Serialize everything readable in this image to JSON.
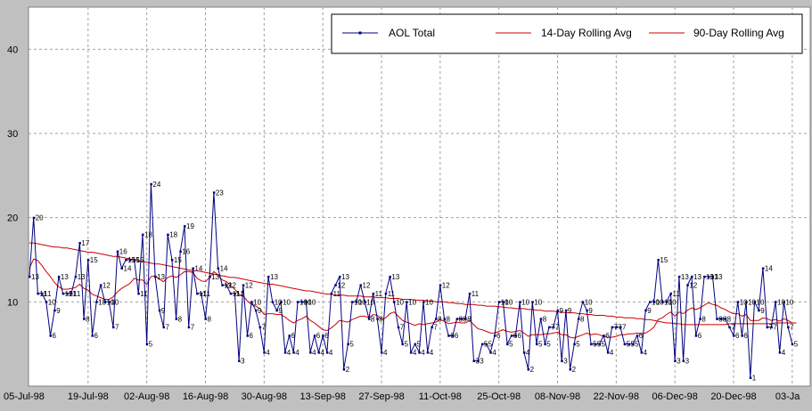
{
  "chart_data": {
    "type": "line",
    "x_ticks": [
      "05-Jul-98",
      "19-Jul-98",
      "02-Aug-98",
      "16-Aug-98",
      "30-Aug-98",
      "13-Sep-98",
      "27-Sep-98",
      "11-Oct-98",
      "25-Oct-98",
      "08-Nov-98",
      "22-Nov-98",
      "06-Dec-98",
      "20-Dec-98",
      "03-Ja"
    ],
    "y_ticks": [
      "10",
      "20",
      "30",
      "40"
    ],
    "ylim": [
      0,
      45
    ],
    "grid": true,
    "legend_position": "top-right",
    "series": [
      {
        "name": "AOL Total",
        "color": "#000080",
        "values": [
          13,
          20,
          11,
          11,
          10,
          6,
          9,
          13,
          11,
          11,
          11,
          13,
          17,
          8,
          15,
          6,
          10,
          12,
          10,
          10,
          7,
          16,
          14,
          15,
          15,
          15,
          11,
          18,
          5,
          24,
          13,
          9,
          7,
          18,
          15,
          8,
          16,
          19,
          7,
          14,
          11,
          11,
          8,
          13,
          23,
          14,
          12,
          12,
          11,
          11,
          3,
          12,
          6,
          10,
          9,
          7,
          4,
          13,
          10,
          9,
          10,
          4,
          6,
          4,
          10,
          10,
          10,
          4,
          6,
          4,
          6,
          4,
          11,
          12,
          13,
          2,
          5,
          10,
          10,
          12,
          10,
          8,
          11,
          8,
          4,
          11,
          13,
          10,
          7,
          5,
          10,
          4,
          5,
          4,
          10,
          4,
          7,
          8,
          12,
          8,
          6,
          6,
          8,
          8,
          8,
          11,
          3,
          3,
          5,
          5,
          4,
          6,
          10,
          10,
          5,
          6,
          6,
          10,
          4,
          2,
          10,
          5,
          8,
          5,
          7,
          7,
          9,
          3,
          9,
          2,
          5,
          8,
          10,
          9,
          5,
          5,
          5,
          6,
          4,
          7,
          7,
          7,
          5,
          5,
          5,
          6,
          4,
          9,
          10,
          10,
          15,
          10,
          10,
          11,
          3,
          13,
          3,
          12,
          13,
          6,
          8,
          13,
          13,
          13,
          8,
          8,
          8,
          7,
          6,
          10,
          6,
          10,
          1,
          10,
          9,
          14,
          7,
          7,
          10,
          4,
          10,
          7,
          5
        ],
        "labels_shown": true
      },
      {
        "name": "14-Day Rolling Avg",
        "color": "#cc0000",
        "values": [
          14,
          15.1,
          14.9,
          14.3,
          13.6,
          13,
          12.3,
          11.8,
          11.5,
          11.5,
          11.6,
          11.7,
          12.1,
          11.6,
          11.4,
          10.9,
          10.7,
          10.5,
          10.3,
          10.3,
          10.6,
          11.2,
          11.6,
          11.9,
          12.2,
          12.8,
          12.6,
          12.6,
          12.1,
          13,
          13.1,
          12.7,
          12.4,
          12.9,
          13.1,
          12.9,
          13.2,
          13.6,
          13.6,
          13.5,
          12.8,
          12.5,
          12.4,
          12.9,
          13.6,
          13.2,
          12.6,
          12.4,
          11.9,
          11.5,
          10.9,
          10.7,
          10.1,
          9.7,
          9.5,
          9.2,
          8.5,
          8.6,
          8.6,
          8.5,
          8.5,
          8.2,
          7.8,
          7.5,
          7.8,
          8,
          8.3,
          7.8,
          7.5,
          7.1,
          6.7,
          6.6,
          6.9,
          7.3,
          7.8,
          7.7,
          7.6,
          7.9,
          8.1,
          8.3,
          8.3,
          8.1,
          8.5,
          8.4,
          7.9,
          8.1,
          8.6,
          8.8,
          8.3,
          7.8,
          7.6,
          7.4,
          7.2,
          7.4,
          7.3,
          7.4,
          7.5,
          7.6,
          7.9,
          7.7,
          7.4,
          7.5,
          7.6,
          7.5,
          7.5,
          7.8,
          7.3,
          6.8,
          6.7,
          6.5,
          6.3,
          6.3,
          6.5,
          6.7,
          6.5,
          6.4,
          6.5,
          6.6,
          6.3,
          5.9,
          6.1,
          6.1,
          6.1,
          6.2,
          6.2,
          6.3,
          6.4,
          6.1,
          6.1,
          5.8,
          5.7,
          5.9,
          6.1,
          6.3,
          6.1,
          6.2,
          6.1,
          5.9,
          5.8,
          5.8,
          5.9,
          6.1,
          6.1,
          6.2,
          6.2,
          6.3,
          6.2,
          6.3,
          6.6,
          7,
          7.9,
          8.1,
          8.5,
          8.8,
          8.3,
          8.8,
          8.6,
          9,
          9.3,
          9.1,
          9.3,
          9.6,
          9.9,
          9.7,
          9.6,
          9.3,
          9.1,
          8.8,
          8.6,
          8.6,
          8.3,
          8.5,
          7.8,
          7.8,
          7.8,
          8.1,
          8,
          7.8,
          7.9,
          7.7,
          8,
          7.8,
          7.5
        ],
        "labels_shown": false
      },
      {
        "name": "90-Day Rolling Avg",
        "color": "#cc0000",
        "values": [
          17,
          17,
          16.9,
          16.8,
          16.7,
          16.6,
          16.5,
          16.5,
          16.4,
          16.4,
          16.3,
          16.2,
          16.1,
          16,
          15.9,
          15.9,
          15.8,
          15.7,
          15.6,
          15.5,
          15.4,
          15.4,
          15.3,
          15.2,
          15.1,
          15,
          14.9,
          14.8,
          14.7,
          14.6,
          14.5,
          14.5,
          14.4,
          14.3,
          14.2,
          14.1,
          14,
          13.9,
          13.8,
          13.7,
          13.7,
          13.6,
          13.5,
          13.4,
          13.3,
          13.2,
          13.1,
          13,
          12.9,
          12.9,
          12.8,
          12.7,
          12.6,
          12.5,
          12.4,
          12.3,
          12.2,
          12.1,
          12.1,
          12,
          11.9,
          11.8,
          11.7,
          11.6,
          11.5,
          11.4,
          11.3,
          11.3,
          11.2,
          11.1,
          11,
          10.9,
          10.9,
          10.8,
          10.8,
          10.8,
          10.7,
          10.7,
          10.7,
          10.7,
          10.6,
          10.6,
          10.6,
          10.5,
          10.5,
          10.5,
          10.4,
          10.4,
          10.4,
          10.3,
          10.3,
          10.3,
          10.2,
          10.2,
          10.2,
          10.1,
          10.1,
          10,
          10,
          10,
          9.9,
          9.9,
          9.8,
          9.8,
          9.7,
          9.7,
          9.7,
          9.6,
          9.6,
          9.5,
          9.5,
          9.5,
          9.4,
          9.4,
          9.3,
          9.3,
          9.2,
          9.2,
          9.2,
          9.1,
          9.1,
          9,
          9,
          8.9,
          8.9,
          8.9,
          8.8,
          8.8,
          8.7,
          8.7,
          8.7,
          8.6,
          8.6,
          8.5,
          8.5,
          8.4,
          8.4,
          8.4,
          8.3,
          8.3,
          8.2,
          8.2,
          8.1,
          8.1,
          8.1,
          8,
          8,
          7.9,
          7.9,
          7.8,
          7.7,
          7.6,
          7.5,
          7.5,
          7.4,
          7.4,
          7.3,
          7.3,
          7.3,
          7.3,
          7.3,
          7.3,
          7.3,
          7.3,
          7.3,
          7.3,
          7.3,
          7.4,
          7.4,
          7.4,
          7.4,
          7.4,
          7.4,
          7.4,
          7.4,
          7.4,
          7.4,
          7.4,
          7.5,
          7.5,
          7.5,
          7.5,
          7.5,
          7.5
        ],
        "labels_shown": false
      }
    ]
  }
}
